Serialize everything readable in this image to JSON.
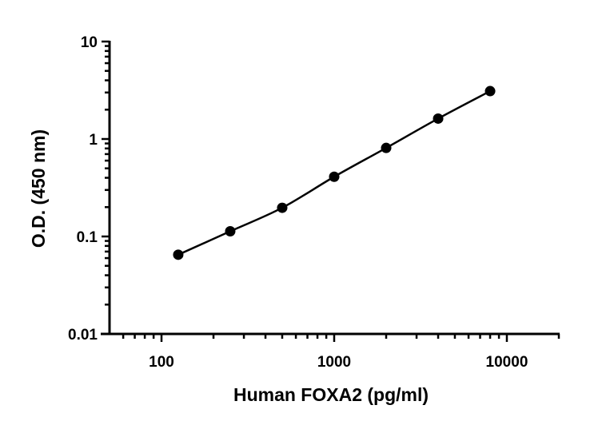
{
  "chart_data": {
    "type": "scatter",
    "xlabel": "Human FOXA2 (pg/ml)",
    "ylabel": "O.D. (450 nm)",
    "xscale": "log",
    "yscale": "log",
    "xlim": [
      50,
      20000
    ],
    "ylim": [
      0.01,
      10
    ],
    "xticks": [
      100,
      1000,
      10000
    ],
    "xtick_labels": [
      "100",
      "1000",
      "10000"
    ],
    "yticks": [
      0.01,
      0.1,
      1,
      10
    ],
    "ytick_labels": [
      "0.01",
      "0.1",
      "1",
      "10"
    ],
    "grid": false,
    "fit_curve": true,
    "series": [
      {
        "x": [
          125,
          250,
          500,
          1000,
          2000,
          4000,
          8000
        ],
        "y": [
          0.065,
          0.113,
          0.197,
          0.41,
          0.81,
          1.62,
          3.1
        ],
        "color": "#000000"
      }
    ]
  }
}
